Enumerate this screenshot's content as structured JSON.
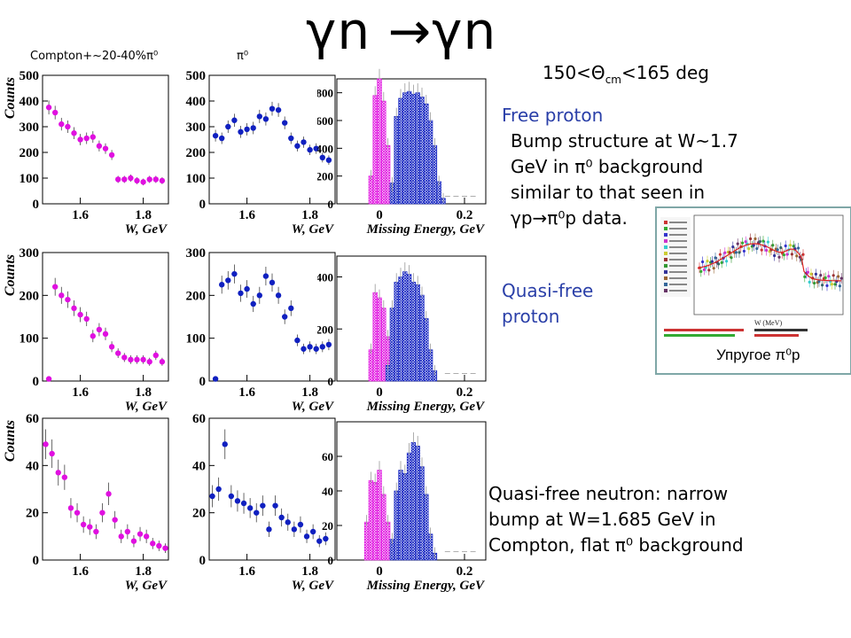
{
  "title": "γn →γn",
  "column_labels": {
    "compton": "Compton+~20-40%π⁰",
    "pi0": "π⁰"
  },
  "angle": {
    "prefix": "150<Θ",
    "sub": "cm",
    "suffix": "<165 deg"
  },
  "notes": {
    "free_proton_title": "Free proton",
    "free_proton_lines": [
      "Bump structure at W~1.7",
      "GeV in π⁰ background",
      "similar to that seen in",
      "γp→π⁰p data."
    ],
    "quasi_proton_lines": [
      "Quasi-free",
      "proton"
    ],
    "quasi_neutron_lines": [
      "Quasi-free neutron: narrow",
      "bump at W=1.685 GeV in",
      "Compton, flat π⁰ background"
    ]
  },
  "inset": {
    "caption": "Упругое π⁰p",
    "x_axis_label": "W (MeV)"
  },
  "colors": {
    "compton": "#e010e0",
    "pi0": "#1020c0",
    "arrow": "#e02020",
    "text_blue": "#2a3fa8"
  },
  "chart_data": [
    {
      "id": "r1c1",
      "type": "scatter",
      "ylabel": "Counts",
      "xlabel": "W, GeV",
      "ylim": [
        0,
        500
      ],
      "xlim": [
        1.48,
        1.88
      ],
      "yticks": [
        0,
        100,
        200,
        300,
        400,
        500
      ],
      "xticks": [
        1.6,
        1.8
      ],
      "color": "compton",
      "x": [
        1.5,
        1.52,
        1.54,
        1.56,
        1.58,
        1.6,
        1.62,
        1.64,
        1.66,
        1.68,
        1.7,
        1.72,
        1.74,
        1.76,
        1.78,
        1.8,
        1.82,
        1.84,
        1.86
      ],
      "values": [
        375,
        355,
        310,
        300,
        275,
        250,
        255,
        260,
        225,
        215,
        190,
        95,
        95,
        100,
        90,
        85,
        95,
        95,
        90
      ]
    },
    {
      "id": "r1c2",
      "type": "scatter",
      "ylabel": "",
      "xlabel": "W, GeV",
      "ylim": [
        0,
        500
      ],
      "xlim": [
        1.48,
        1.88
      ],
      "yticks": [
        0,
        100,
        200,
        300,
        400,
        500
      ],
      "xticks": [
        1.6,
        1.8
      ],
      "color": "pi0",
      "x": [
        1.5,
        1.52,
        1.54,
        1.56,
        1.58,
        1.6,
        1.62,
        1.64,
        1.66,
        1.68,
        1.7,
        1.72,
        1.74,
        1.76,
        1.78,
        1.8,
        1.82,
        1.84,
        1.86
      ],
      "values": [
        265,
        255,
        300,
        325,
        280,
        290,
        295,
        340,
        330,
        370,
        365,
        315,
        255,
        225,
        240,
        210,
        215,
        180,
        170
      ]
    },
    {
      "id": "r1c3",
      "type": "histogram",
      "xlabel": "Missing Energy, GeV",
      "ylim": [
        0,
        900
      ],
      "xlim": [
        -0.1,
        0.25
      ],
      "yticks": [
        0,
        200,
        400,
        600,
        800
      ],
      "xticks": [
        0,
        0.2
      ],
      "bin_width": 0.01,
      "compton_x": [
        -0.02,
        -0.01,
        0.0,
        0.01,
        0.02,
        0.03
      ],
      "compton_values": [
        200,
        780,
        900,
        740,
        420,
        120
      ],
      "pi0_x": [
        0.03,
        0.04,
        0.05,
        0.06,
        0.07,
        0.08,
        0.09,
        0.1,
        0.11,
        0.12,
        0.13,
        0.14,
        0.15
      ],
      "pi0_values": [
        150,
        630,
        760,
        800,
        810,
        790,
        800,
        770,
        720,
        600,
        420,
        160,
        40
      ]
    },
    {
      "id": "r2c1",
      "type": "scatter",
      "ylabel": "Counts",
      "xlabel": "W, GeV",
      "ylim": [
        0,
        300
      ],
      "xlim": [
        1.48,
        1.88
      ],
      "yticks": [
        0,
        100,
        200,
        300
      ],
      "xticks": [
        1.6,
        1.8
      ],
      "color": "compton",
      "x": [
        1.5,
        1.52,
        1.54,
        1.56,
        1.58,
        1.6,
        1.62,
        1.64,
        1.66,
        1.68,
        1.7,
        1.72,
        1.74,
        1.76,
        1.78,
        1.8,
        1.82,
        1.84,
        1.86
      ],
      "values": [
        5,
        220,
        200,
        190,
        170,
        155,
        145,
        105,
        120,
        110,
        80,
        65,
        55,
        50,
        50,
        50,
        45,
        60,
        45
      ]
    },
    {
      "id": "r2c2",
      "type": "scatter",
      "ylabel": "",
      "xlabel": "W, GeV",
      "ylim": [
        0,
        300
      ],
      "xlim": [
        1.48,
        1.88
      ],
      "yticks": [
        0,
        100,
        200,
        300
      ],
      "xticks": [
        1.6,
        1.8
      ],
      "color": "pi0",
      "x": [
        1.5,
        1.52,
        1.54,
        1.56,
        1.58,
        1.6,
        1.62,
        1.64,
        1.66,
        1.68,
        1.7,
        1.72,
        1.74,
        1.76,
        1.78,
        1.8,
        1.82,
        1.84,
        1.86
      ],
      "values": [
        5,
        225,
        235,
        250,
        205,
        215,
        180,
        200,
        245,
        230,
        200,
        150,
        170,
        95,
        75,
        80,
        75,
        80,
        85
      ]
    },
    {
      "id": "r2c3",
      "type": "histogram",
      "xlabel": "Missing Energy, GeV",
      "ylim": [
        0,
        480
      ],
      "xlim": [
        -0.1,
        0.25
      ],
      "yticks": [
        0,
        200,
        400
      ],
      "xticks": [
        0,
        0.2
      ],
      "bin_width": 0.01,
      "compton_x": [
        -0.02,
        -0.01,
        0.0,
        0.01,
        0.02
      ],
      "compton_values": [
        120,
        340,
        320,
        280,
        170
      ],
      "pi0_x": [
        0.02,
        0.03,
        0.04,
        0.05,
        0.06,
        0.07,
        0.08,
        0.09,
        0.1,
        0.11,
        0.12,
        0.13
      ],
      "pi0_values": [
        60,
        280,
        380,
        400,
        420,
        410,
        380,
        370,
        330,
        240,
        120,
        40
      ]
    },
    {
      "id": "r3c1",
      "type": "scatter",
      "ylabel": "Counts",
      "xlabel": "W, GeV",
      "ylim": [
        0,
        60
      ],
      "xlim": [
        1.48,
        1.88
      ],
      "yticks": [
        0,
        20,
        40,
        60
      ],
      "xticks": [
        1.6,
        1.8
      ],
      "color": "compton",
      "x": [
        1.49,
        1.51,
        1.53,
        1.55,
        1.57,
        1.59,
        1.61,
        1.63,
        1.65,
        1.67,
        1.69,
        1.71,
        1.73,
        1.75,
        1.77,
        1.79,
        1.81,
        1.83,
        1.85,
        1.87
      ],
      "values": [
        49,
        45,
        37,
        35,
        22,
        20,
        15,
        14,
        12,
        20,
        28,
        17,
        10,
        12,
        8,
        11,
        10,
        7,
        6,
        5
      ]
    },
    {
      "id": "r3c2",
      "type": "scatter",
      "ylabel": "",
      "xlabel": "W, GeV",
      "ylim": [
        0,
        60
      ],
      "xlim": [
        1.48,
        1.88
      ],
      "yticks": [
        0,
        20,
        40,
        60
      ],
      "xticks": [
        1.6,
        1.8
      ],
      "color": "pi0",
      "x": [
        1.49,
        1.51,
        1.53,
        1.55,
        1.57,
        1.59,
        1.61,
        1.63,
        1.65,
        1.67,
        1.69,
        1.71,
        1.73,
        1.75,
        1.77,
        1.79,
        1.81,
        1.83,
        1.85
      ],
      "values": [
        27,
        30,
        49,
        27,
        25,
        24,
        22,
        20,
        23,
        13,
        23,
        18,
        16,
        13,
        15,
        10,
        12,
        8,
        9
      ]
    },
    {
      "id": "r3c3",
      "type": "histogram",
      "xlabel": "Missing Energy, GeV",
      "ylim": [
        0,
        80
      ],
      "xlim": [
        -0.1,
        0.25
      ],
      "yticks": [
        0,
        20,
        40,
        60
      ],
      "xticks": [
        0,
        0.2
      ],
      "bin_width": 0.01,
      "compton_x": [
        -0.03,
        -0.02,
        -0.01,
        0.0,
        0.01,
        0.02
      ],
      "compton_values": [
        22,
        46,
        45,
        52,
        38,
        22
      ],
      "pi0_x": [
        0.03,
        0.04,
        0.05,
        0.06,
        0.07,
        0.08,
        0.09,
        0.1,
        0.11,
        0.12,
        0.13
      ],
      "pi0_values": [
        12,
        40,
        52,
        50,
        62,
        68,
        66,
        54,
        38,
        15,
        4
      ]
    }
  ]
}
